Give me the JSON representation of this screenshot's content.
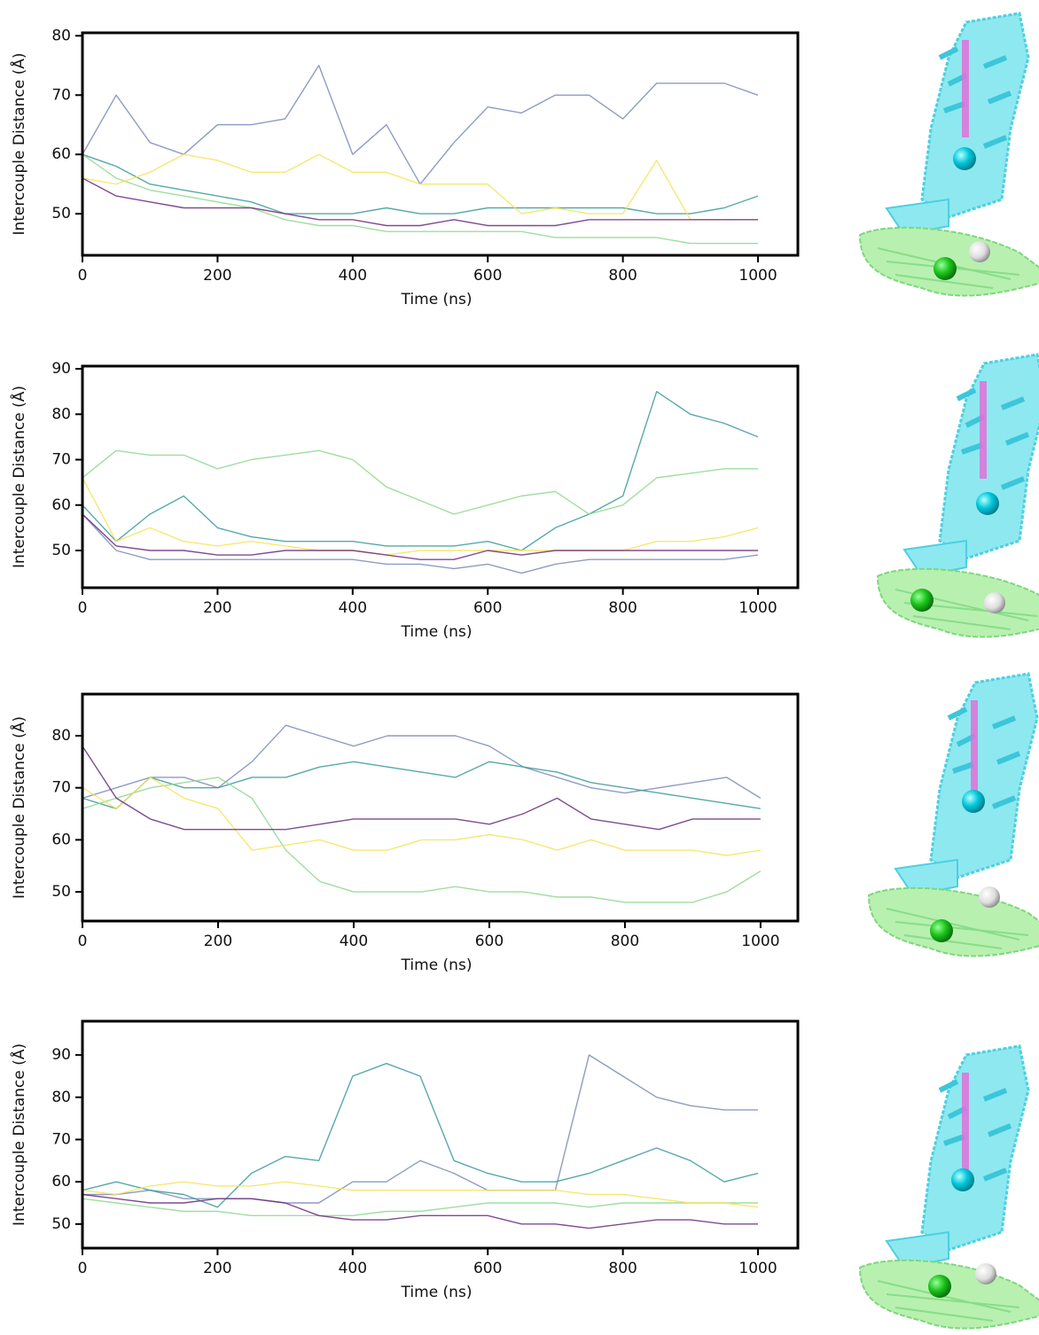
{
  "chart_data": [
    {
      "type": "line",
      "xlabel": "Time (ns)",
      "ylabel": "Intercouple Distance (Å)",
      "x": [
        0,
        50,
        100,
        150,
        200,
        250,
        300,
        350,
        400,
        450,
        500,
        550,
        600,
        650,
        700,
        750,
        800,
        850,
        900,
        950,
        1000
      ],
      "xlim": [
        0,
        1059
      ],
      "xticks": [
        0,
        200,
        400,
        600,
        800,
        1000
      ],
      "ylim": [
        43,
        80.5
      ],
      "yticks": [
        50,
        60,
        70,
        80
      ],
      "series": [
        {
          "color": "#7b8bb8",
          "values": [
            60,
            70,
            62,
            60,
            65,
            65,
            66,
            75,
            60,
            65,
            55,
            62,
            68,
            67,
            70,
            70,
            66,
            72,
            72,
            72,
            70
          ]
        },
        {
          "color": "#3a9a9a",
          "values": [
            60,
            58,
            55,
            54,
            53,
            52,
            50,
            50,
            50,
            51,
            50,
            50,
            51,
            51,
            51,
            51,
            51,
            50,
            50,
            51,
            53
          ]
        },
        {
          "color": "#8ed88e",
          "values": [
            60,
            56,
            54,
            53,
            52,
            51,
            49,
            48,
            48,
            47,
            47,
            47,
            47,
            47,
            46,
            46,
            46,
            46,
            45,
            45,
            45
          ]
        },
        {
          "color": "#f7e35a",
          "values": [
            56,
            55,
            57,
            60,
            59,
            57,
            57,
            60,
            57,
            57,
            55,
            55,
            55,
            50,
            51,
            50,
            50,
            59,
            49,
            49,
            49
          ]
        },
        {
          "color": "#6a2c7e",
          "values": [
            56,
            53,
            52,
            51,
            51,
            51,
            50,
            49,
            49,
            48,
            48,
            49,
            48,
            48,
            48,
            49,
            49,
            49,
            49,
            49,
            49
          ]
        }
      ]
    },
    {
      "type": "line",
      "xlabel": "Time (ns)",
      "ylabel": "Intercouple Distance (Å)",
      "x": [
        0,
        50,
        100,
        150,
        200,
        250,
        300,
        350,
        400,
        450,
        500,
        550,
        600,
        650,
        700,
        750,
        800,
        850,
        900,
        950,
        1000
      ],
      "xlim": [
        0,
        1059
      ],
      "xticks": [
        0,
        200,
        400,
        600,
        800,
        1000
      ],
      "ylim": [
        41.8,
        90.6
      ],
      "yticks": [
        50,
        60,
        70,
        80,
        90
      ],
      "series": [
        {
          "color": "#7b8bb8",
          "values": [
            58,
            50,
            48,
            48,
            48,
            48,
            48,
            48,
            48,
            47,
            47,
            46,
            47,
            45,
            47,
            48,
            48,
            48,
            48,
            48,
            49
          ]
        },
        {
          "color": "#3a9a9a",
          "values": [
            60,
            52,
            58,
            62,
            55,
            53,
            52,
            52,
            52,
            51,
            51,
            51,
            52,
            50,
            55,
            58,
            62,
            85,
            80,
            78,
            75
          ]
        },
        {
          "color": "#8ed88e",
          "values": [
            66,
            72,
            71,
            71,
            68,
            70,
            71,
            72,
            70,
            64,
            61,
            58,
            60,
            62,
            63,
            58,
            60,
            66,
            67,
            68,
            68
          ]
        },
        {
          "color": "#f7e35a",
          "values": [
            66,
            52,
            55,
            52,
            51,
            52,
            51,
            50,
            50,
            49,
            50,
            50,
            50,
            50,
            50,
            50,
            50,
            52,
            52,
            53,
            55
          ]
        },
        {
          "color": "#6a2c7e",
          "values": [
            58,
            51,
            50,
            50,
            49,
            49,
            50,
            50,
            50,
            49,
            48,
            48,
            50,
            49,
            50,
            50,
            50,
            50,
            50,
            50,
            50
          ]
        }
      ]
    },
    {
      "type": "line",
      "xlabel": "Time (ns)",
      "ylabel": "Intercouple Distance (Å)",
      "x": [
        0,
        50,
        100,
        150,
        200,
        250,
        300,
        350,
        400,
        450,
        500,
        550,
        600,
        650,
        700,
        750,
        800,
        850,
        900,
        950,
        1000
      ],
      "xlim": [
        0,
        1055
      ],
      "xticks": [
        0,
        200,
        400,
        600,
        800,
        1000
      ],
      "ylim": [
        44.4,
        88
      ],
      "yticks": [
        50,
        60,
        70,
        80
      ],
      "series": [
        {
          "color": "#7b8bb8",
          "values": [
            68,
            70,
            72,
            72,
            70,
            75,
            82,
            80,
            78,
            80,
            80,
            80,
            78,
            74,
            72,
            70,
            69,
            70,
            71,
            72,
            68
          ]
        },
        {
          "color": "#3a9a9a",
          "values": [
            68,
            66,
            72,
            70,
            70,
            72,
            72,
            74,
            75,
            74,
            73,
            72,
            75,
            74,
            73,
            71,
            70,
            69,
            68,
            67,
            66
          ]
        },
        {
          "color": "#8ed88e",
          "values": [
            66,
            68,
            70,
            71,
            72,
            68,
            58,
            52,
            50,
            50,
            50,
            51,
            50,
            50,
            49,
            49,
            48,
            48,
            48,
            50,
            54
          ]
        },
        {
          "color": "#f7e35a",
          "values": [
            70,
            66,
            72,
            68,
            66,
            58,
            59,
            60,
            58,
            58,
            60,
            60,
            61,
            60,
            58,
            60,
            58,
            58,
            58,
            57,
            58
          ]
        },
        {
          "color": "#6a2c7e",
          "values": [
            78,
            68,
            64,
            62,
            62,
            62,
            62,
            63,
            64,
            64,
            64,
            64,
            63,
            65,
            68,
            64,
            63,
            62,
            64,
            64,
            64
          ]
        }
      ]
    },
    {
      "type": "line",
      "xlabel": "Time (ns)",
      "ylabel": "Intercouple Distance (Å)",
      "x": [
        0,
        50,
        100,
        150,
        200,
        250,
        300,
        350,
        400,
        450,
        500,
        550,
        600,
        650,
        700,
        750,
        800,
        850,
        900,
        950,
        1000
      ],
      "xlim": [
        0,
        1059
      ],
      "xticks": [
        0,
        200,
        400,
        600,
        800,
        1000
      ],
      "ylim": [
        44.3,
        98
      ],
      "yticks": [
        50,
        60,
        70,
        80,
        90
      ],
      "series": [
        {
          "color": "#7b8bb8",
          "values": [
            57,
            57,
            58,
            56,
            56,
            56,
            55,
            55,
            60,
            60,
            65,
            62,
            58,
            58,
            58,
            90,
            85,
            80,
            78,
            77,
            77
          ]
        },
        {
          "color": "#3a9a9a",
          "values": [
            58,
            60,
            58,
            57,
            54,
            62,
            66,
            65,
            85,
            88,
            85,
            65,
            62,
            60,
            60,
            62,
            65,
            68,
            65,
            60,
            62
          ]
        },
        {
          "color": "#8ed88e",
          "values": [
            56,
            55,
            54,
            53,
            53,
            52,
            52,
            52,
            52,
            53,
            53,
            54,
            55,
            55,
            55,
            54,
            55,
            55,
            55,
            55,
            55
          ]
        },
        {
          "color": "#f7e35a",
          "values": [
            58,
            57,
            59,
            60,
            59,
            59,
            60,
            59,
            58,
            58,
            58,
            58,
            58,
            58,
            58,
            57,
            57,
            56,
            55,
            55,
            54
          ]
        },
        {
          "color": "#6a2c7e",
          "values": [
            57,
            56,
            55,
            55,
            56,
            56,
            55,
            52,
            51,
            51,
            52,
            52,
            52,
            50,
            50,
            49,
            50,
            51,
            51,
            50,
            50
          ]
        }
      ]
    }
  ]
}
